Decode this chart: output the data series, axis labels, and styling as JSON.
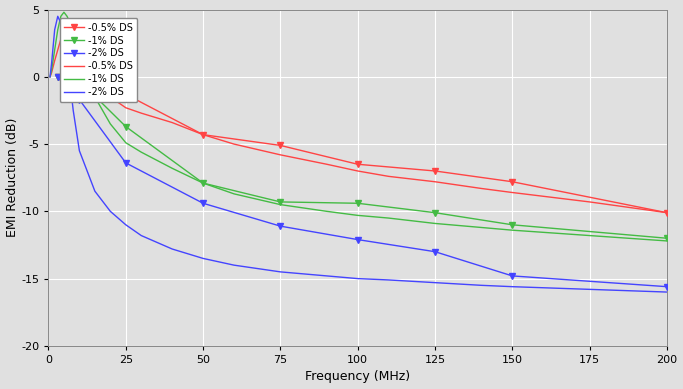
{
  "xlabel": "Frequency (MHz)",
  "ylabel": "EMI Reduction (dB)",
  "xlim": [
    0,
    200
  ],
  "ylim": [
    -5,
    20
  ],
  "yticks": [
    -5,
    0,
    5,
    10,
    15,
    20
  ],
  "ytick_labels": [
    "5",
    "0",
    "-5",
    "-10",
    "-15",
    "-20"
  ],
  "xticks": [
    0,
    25,
    50,
    75,
    100,
    125,
    150,
    175,
    200
  ],
  "measured_freqs": [
    3,
    7,
    10,
    25,
    50,
    75,
    100,
    125,
    150,
    200
  ],
  "measured_05": [
    0.0,
    0.1,
    0.15,
    1.3,
    4.3,
    5.1,
    6.5,
    7.0,
    7.8,
    10.1
  ],
  "measured_1": [
    0.0,
    0.2,
    0.3,
    3.7,
    7.9,
    9.3,
    9.4,
    10.1,
    11.0,
    12.0
  ],
  "measured_2": [
    0.0,
    1.1,
    1.7,
    6.4,
    9.4,
    11.1,
    12.1,
    13.0,
    14.8,
    15.6
  ],
  "calc_freqs_05": [
    0.5,
    1,
    2,
    3,
    4,
    5,
    6,
    7,
    8,
    10,
    15,
    20,
    25,
    30,
    40,
    50,
    60,
    75,
    90,
    100,
    110,
    125,
    140,
    150,
    175,
    200
  ],
  "calc_05": [
    0.0,
    -0.3,
    -1.2,
    -2.0,
    -2.8,
    -3.2,
    -3.5,
    -3.3,
    -2.8,
    -1.5,
    0.5,
    1.5,
    2.3,
    2.7,
    3.4,
    4.3,
    5.0,
    5.8,
    6.5,
    7.0,
    7.4,
    7.8,
    8.3,
    8.6,
    9.3,
    10.1
  ],
  "calc_freqs_1": [
    0.5,
    1,
    2,
    3,
    4,
    5,
    6,
    7,
    8,
    10,
    15,
    20,
    25,
    30,
    40,
    50,
    60,
    75,
    90,
    100,
    110,
    125,
    140,
    150,
    175,
    200
  ],
  "calc_1": [
    0.0,
    -0.5,
    -2.0,
    -3.5,
    -4.5,
    -4.8,
    -4.5,
    -4.0,
    -3.0,
    -1.5,
    1.5,
    3.5,
    4.9,
    5.6,
    6.8,
    7.9,
    8.7,
    9.5,
    10.0,
    10.3,
    10.5,
    10.9,
    11.2,
    11.4,
    11.8,
    12.2
  ],
  "calc_freqs_2": [
    0.5,
    1,
    2,
    3,
    4,
    5,
    6,
    7,
    8,
    10,
    15,
    20,
    25,
    30,
    40,
    50,
    60,
    75,
    90,
    100,
    110,
    125,
    140,
    150,
    175,
    200
  ],
  "calc_2": [
    0.0,
    -1.0,
    -3.5,
    -4.5,
    -4.0,
    -3.0,
    -1.5,
    0.5,
    2.5,
    5.5,
    8.5,
    10.0,
    11.0,
    11.8,
    12.8,
    13.5,
    14.0,
    14.5,
    14.8,
    15.0,
    15.1,
    15.3,
    15.5,
    15.6,
    15.8,
    16.0
  ],
  "color_05": "#FF4444",
  "color_1": "#44BB44",
  "color_2": "#4444FF",
  "legend_measured_05": "-0.5% DS",
  "legend_measured_1": "-1% DS",
  "legend_measured_2": "-2% DS",
  "legend_calc_05": "-0.5% DS",
  "legend_calc_1": "-1% DS",
  "legend_calc_2": "-2% DS",
  "bg_color": "#E0E0E0",
  "grid_color": "#FFFFFF"
}
